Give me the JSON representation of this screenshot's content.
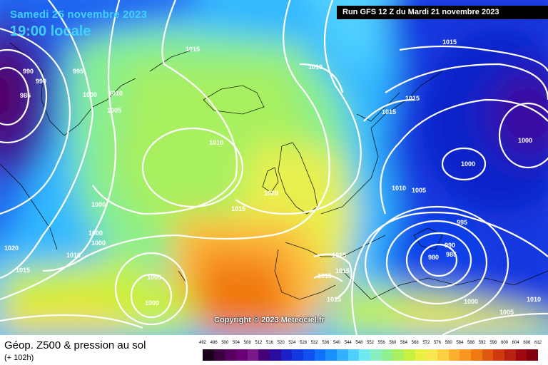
{
  "header": {
    "valid_date": "Samedi 25 novembre 2023",
    "valid_time": "19:00 locale",
    "run_info": "Run GFS 12 Z du Mardi 21 novembre 2023"
  },
  "footer": {
    "product": "Géop. Z500 & pression au sol",
    "lead_time": "(+ 102h)",
    "copyright": "Copyright © 2023 Meteociel.fr"
  },
  "legend": {
    "ticks": [
      "492",
      "496",
      "500",
      "504",
      "508",
      "512",
      "516",
      "520",
      "524",
      "528",
      "532",
      "536",
      "540",
      "544",
      "548",
      "552",
      "556",
      "560",
      "564",
      "568",
      "572",
      "576",
      "580",
      "584",
      "588",
      "592",
      "596",
      "600",
      "604",
      "608",
      "612"
    ],
    "colors": [
      "#1a001a",
      "#3a0040",
      "#55005e",
      "#6a0078",
      "#7a1a8a",
      "#46007a",
      "#2a0ca0",
      "#1c20c8",
      "#1438e0",
      "#1050f0",
      "#1070ff",
      "#1890ff",
      "#30b0ff",
      "#50d0ff",
      "#70e8f0",
      "#88f0c0",
      "#90f090",
      "#a8f060",
      "#c8f040",
      "#e8f040",
      "#f8e850",
      "#fcd040",
      "#fcb030",
      "#f89820",
      "#f07810",
      "#e05810",
      "#d03810",
      "#b82010",
      "#a00810",
      "#800010"
    ]
  },
  "isobars": [
    {
      "label": "990"
    },
    {
      "label": "985"
    },
    {
      "label": "990"
    },
    {
      "label": "995"
    },
    {
      "label": "1000"
    },
    {
      "label": "1010"
    },
    {
      "label": "1005"
    },
    {
      "label": "1015"
    },
    {
      "label": "1010"
    },
    {
      "label": "1010"
    },
    {
      "label": "1015"
    },
    {
      "label": "1015"
    },
    {
      "label": "1015"
    },
    {
      "label": "1000"
    },
    {
      "label": "1000"
    },
    {
      "label": "1010"
    },
    {
      "label": "1005"
    },
    {
      "label": "1020"
    },
    {
      "label": "1015"
    },
    {
      "label": "1000"
    },
    {
      "label": "1000"
    },
    {
      "label": "1000"
    },
    {
      "label": "1020"
    },
    {
      "label": "1010"
    },
    {
      "label": "1015"
    },
    {
      "label": "1005"
    },
    {
      "label": "1000"
    },
    {
      "label": "1015"
    },
    {
      "label": "1015"
    },
    {
      "label": "1015"
    },
    {
      "label": "1015"
    },
    {
      "label": "995"
    },
    {
      "label": "990"
    },
    {
      "label": "985"
    },
    {
      "label": "980"
    },
    {
      "label": "1000"
    },
    {
      "label": "1005"
    },
    {
      "label": "1010"
    }
  ]
}
